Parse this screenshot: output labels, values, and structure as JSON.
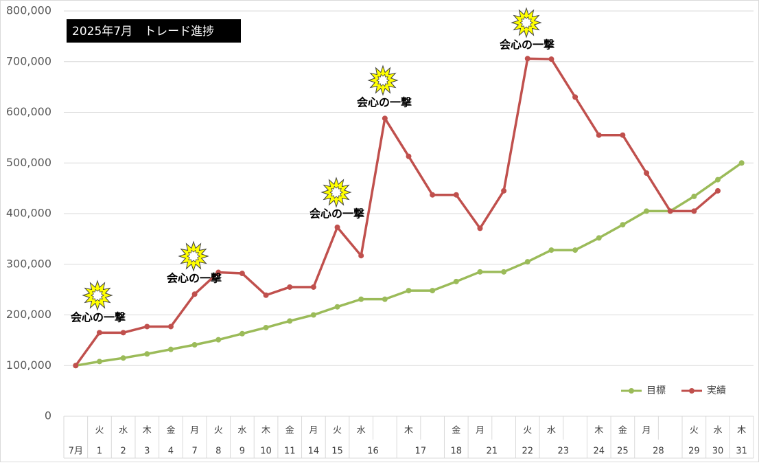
{
  "chart_data": {
    "type": "line",
    "title": "2025年7月　トレード進捗",
    "categories": [
      "7月",
      "1",
      "2",
      "3",
      "4",
      "7",
      "8",
      "9",
      "10",
      "11",
      "14",
      "15",
      "16",
      null,
      "17",
      null,
      "18",
      "21",
      null,
      "22",
      "23",
      null,
      "24",
      "25",
      "28",
      null,
      "29",
      "30",
      "31"
    ],
    "weekdays": [
      null,
      "火",
      "水",
      "木",
      "金",
      "月",
      "火",
      "水",
      "木",
      "金",
      "月",
      "火",
      "水",
      null,
      "木",
      null,
      "金",
      "月",
      null,
      "火",
      "水",
      null,
      "木",
      "金",
      "月",
      null,
      "火",
      "水",
      "木"
    ],
    "series": [
      {
        "name": "目標",
        "color": "#9bbb59",
        "values": [
          100000,
          108000,
          115000,
          123000,
          132000,
          141000,
          151000,
          163000,
          175000,
          188000,
          200000,
          216000,
          231000,
          231000,
          248000,
          248000,
          266000,
          285000,
          285000,
          305000,
          328000,
          328000,
          352000,
          378000,
          405000,
          405000,
          434000,
          467000,
          500000
        ]
      },
      {
        "name": "実績",
        "color": "#c0504d",
        "values": [
          100000,
          165000,
          165000,
          177000,
          177000,
          241000,
          284000,
          282000,
          239000,
          255000,
          255000,
          373000,
          317000,
          588000,
          513000,
          437000,
          437000,
          371000,
          445000,
          706000,
          705000,
          630000,
          555000,
          555000,
          480000,
          405000,
          405000,
          445000,
          null
        ]
      }
    ],
    "annotations": [
      "会心の一撃",
      "会心の一撃",
      "会心の一撃",
      "会心の一撃",
      "会心の一撃"
    ],
    "ylim": [
      0,
      800000
    ],
    "yticks": [
      0,
      {
        "value": 100000,
        "label": "100,000"
      },
      {
        "value": 200000,
        "label": "200,000"
      },
      {
        "value": 300000,
        "label": "300,000"
      },
      {
        "value": 400000,
        "label": "400,000"
      },
      {
        "value": 500000,
        "label": "500,000"
      },
      {
        "value": 600000,
        "label": "600,000"
      },
      {
        "value": 700000,
        "label": "700,000"
      },
      {
        "value": 800000,
        "label": "800,000"
      }
    ],
    "grid": true,
    "legend": "lower right"
  }
}
